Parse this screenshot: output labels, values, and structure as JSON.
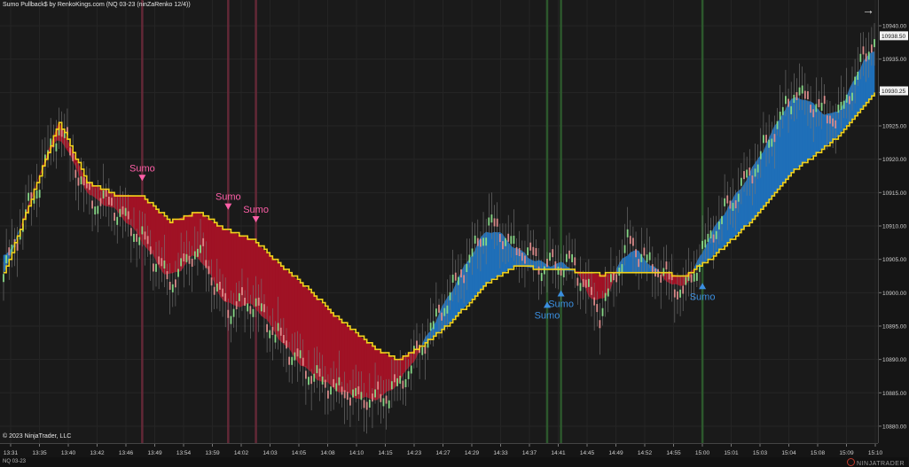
{
  "title": "Sumo Pullback$ by RenkoKings.com (NQ 03-23 (ninZaRenko 12/4))",
  "copyright": "© 2023 NinjaTrader, LLC",
  "instrument": "NQ 03-23",
  "brand": "NINJATRADER",
  "icons": {
    "expand": "arrow-right-icon",
    "logo": "ninjatrader-logo-icon"
  },
  "colors": {
    "bull_bar": "#86d686",
    "bear_bar": "#d98a8a",
    "ribbon_bull": "#1f6fb8",
    "ribbon_bear": "#a01225",
    "midline": "#f2d21b",
    "signal_sell": "#ff5fa8",
    "signal_buy": "#3b8fe0",
    "vline_sell": "#6a2a3a",
    "vline_buy": "#2e5e2e"
  },
  "price_axis": {
    "min": 10878,
    "max": 10942,
    "labels": [
      "10940.00",
      "10935.00",
      "10930.00",
      "10925.00",
      "10920.00",
      "10915.00",
      "10910.00",
      "10905.00",
      "10900.00",
      "10895.00",
      "10890.00",
      "10885.00",
      "10880.00"
    ],
    "markers": [
      {
        "label": "10938.50",
        "value": 10938.5
      },
      {
        "label": "10930.25",
        "value": 10930.25
      }
    ]
  },
  "time_axis": {
    "labels": [
      "13:31",
      "13:35",
      "13:40",
      "13:42",
      "13:46",
      "13:49",
      "13:54",
      "13:59",
      "14:02",
      "14:03",
      "14:05",
      "14:08",
      "14:10",
      "14:15",
      "14:23",
      "14:27",
      "14:29",
      "14:33",
      "14:37",
      "14:41",
      "14:45",
      "14:49",
      "14:52",
      "14:55",
      "15:00",
      "15:01",
      "15:03",
      "15:04",
      "15:08",
      "15:09",
      "15:10"
    ]
  },
  "signals": [
    {
      "label": "Sumo",
      "type": "sell",
      "bar_index": 50,
      "price": 10917.0
    },
    {
      "label": "Sumo",
      "type": "sell",
      "bar_index": 81,
      "price": 10912.7
    },
    {
      "label": "Sumo",
      "type": "sell",
      "bar_index": 91,
      "price": 10910.8
    },
    {
      "label": "Sumo",
      "type": "buy",
      "bar_index": 196,
      "price": 10898.4
    },
    {
      "label": "Sumo",
      "type": "buy",
      "bar_index": 201,
      "price": 10900.1
    },
    {
      "label": "Sumo",
      "type": "buy",
      "bar_index": 252,
      "price": 10901.2
    }
  ],
  "chart_data": {
    "type": "candlestick-renko",
    "bar_count": 315,
    "key_points": [
      [
        0,
        10902.8,
        10902.8
      ],
      [
        20,
        10925.1,
        10925.6
      ],
      [
        30,
        10914.4,
        10916.6
      ],
      [
        40,
        10912.8,
        10914.7
      ],
      [
        50,
        10908.0,
        10914.5
      ],
      [
        60,
        10901.4,
        10910.6
      ],
      [
        70,
        10906.9,
        10912.1
      ],
      [
        80,
        10897.6,
        10909.4
      ],
      [
        90,
        10898.7,
        10907.9
      ],
      [
        100,
        10892.8,
        10904.1
      ],
      [
        110,
        10888.0,
        10900.4
      ],
      [
        120,
        10885.5,
        10896.3
      ],
      [
        128,
        10884.2,
        10893.6
      ],
      [
        135,
        10883.9,
        10891.4
      ],
      [
        142,
        10886.1,
        10889.9
      ],
      [
        150,
        10891.3,
        10891.8
      ],
      [
        160,
        10899.1,
        10895.1
      ],
      [
        175,
        10910.4,
        10901.7
      ],
      [
        185,
        10906.4,
        10904.1
      ],
      [
        195,
        10904.0,
        10903.5
      ],
      [
        205,
        10904.5,
        10903.3
      ],
      [
        215,
        10896.8,
        10902.7
      ],
      [
        225,
        10907.5,
        10903.0
      ],
      [
        235,
        10903.5,
        10903.2
      ],
      [
        245,
        10899.8,
        10902.4
      ],
      [
        255,
        10908.9,
        10905.2
      ],
      [
        270,
        10918.3,
        10910.9
      ],
      [
        285,
        10930.2,
        10918.3
      ],
      [
        300,
        10925.6,
        10923.1
      ],
      [
        315,
        10939.4,
        10930.3
      ]
    ],
    "price_range": [
      10878,
      10942
    ]
  }
}
